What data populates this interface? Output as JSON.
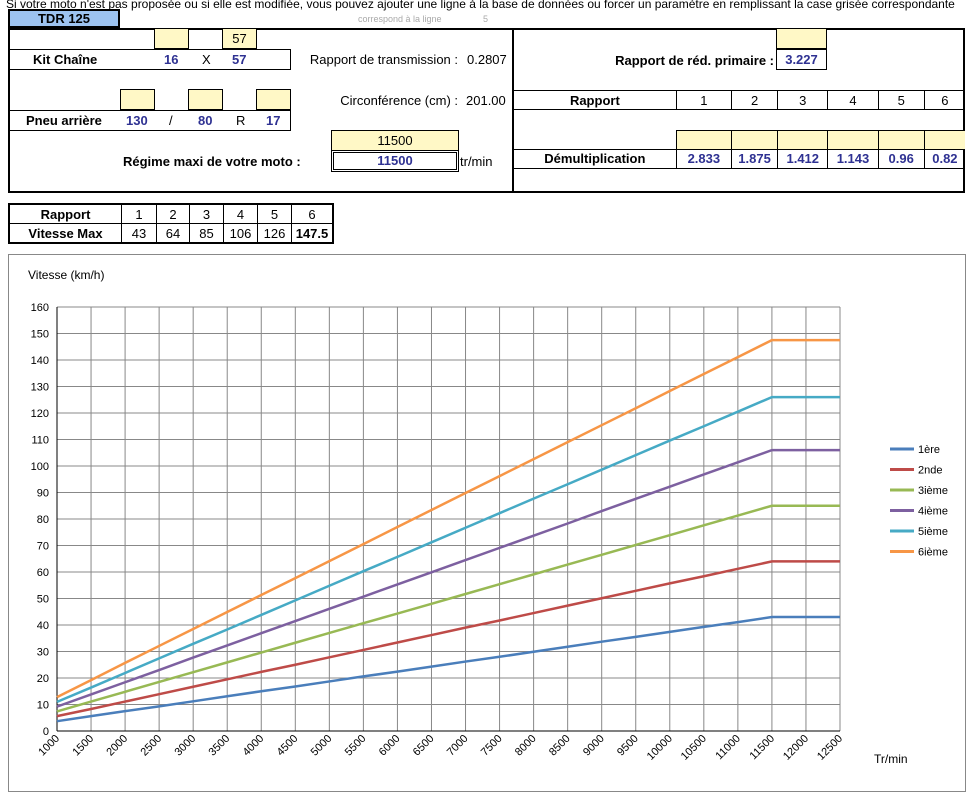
{
  "notice": "Si votre moto n'est pas proposée ou si elle est modifiée, vous pouvez ajouter une ligne à la base de données ou forcer un paramètre en remplissant la case grisée correspondante",
  "model": "TDR 125",
  "line_ref": {
    "label": "correspond à la ligne",
    "value": "5"
  },
  "kit": {
    "label": "Kit Chaîne",
    "override_rear": "57",
    "front": "16",
    "sep": "X",
    "rear": "57"
  },
  "transmission": {
    "label": "Rapport de transmission :",
    "value": "0.2807"
  },
  "tyre": {
    "label": "Pneu arrière",
    "width": "130",
    "sep": "/",
    "ratio": "80",
    "r": "R",
    "rim": "17"
  },
  "circ": {
    "label": "Circonférence (cm) :",
    "value": "201.00"
  },
  "regime": {
    "label": "Régime maxi de votre moto :",
    "override": "11500",
    "value": "11500",
    "unit": "tr/min"
  },
  "primary": {
    "label": "Rapport  de réd. primaire :",
    "value": "3.227"
  },
  "gears": {
    "label": "Rapport",
    "numbers": [
      "1",
      "2",
      "3",
      "4",
      "5",
      "6"
    ],
    "demul_label": "Démultiplication",
    "demul": [
      "2.833",
      "1.875",
      "1.412",
      "1.143",
      "0.96",
      "0.82"
    ]
  },
  "speed_table": {
    "head": "Rapport",
    "row": "Vitesse Max",
    "gears": [
      "1",
      "2",
      "3",
      "4",
      "5",
      "6"
    ],
    "values": [
      "43",
      "64",
      "85",
      "106",
      "126",
      "147.5"
    ]
  },
  "chart_data": {
    "type": "line",
    "ylabel": "Vitesse (km/h)",
    "xlabel": "Tr/min",
    "ylim": [
      0,
      160
    ],
    "yticks": [
      "0",
      "10",
      "20",
      "30",
      "40",
      "50",
      "60",
      "70",
      "80",
      "90",
      "100",
      "110",
      "120",
      "130",
      "140",
      "150",
      "160"
    ],
    "x": [
      "1000",
      "1500",
      "2000",
      "2500",
      "3000",
      "3500",
      "4000",
      "4500",
      "5000",
      "5500",
      "6000",
      "6500",
      "7000",
      "7500",
      "8000",
      "8500",
      "9000",
      "9500",
      "10000",
      "10500",
      "11000",
      "11500",
      "12000",
      "12500"
    ],
    "grid": true,
    "legend": "right",
    "series": [
      {
        "name": "1ère",
        "color": "#4a7ebb",
        "values": [
          3.7,
          5.6,
          7.5,
          9.3,
          11.2,
          13.1,
          15.0,
          16.8,
          18.7,
          20.6,
          22.4,
          24.3,
          26.2,
          28.0,
          29.9,
          31.8,
          33.7,
          35.5,
          37.4,
          39.3,
          41.1,
          43,
          43,
          43
        ]
      },
      {
        "name": "2nde",
        "color": "#be4b48",
        "values": [
          5.6,
          8.3,
          11.1,
          13.9,
          16.7,
          19.5,
          22.3,
          25.0,
          27.8,
          30.6,
          33.4,
          36.2,
          39.0,
          41.7,
          44.5,
          47.3,
          50.1,
          52.9,
          55.7,
          58.4,
          61.2,
          64,
          64,
          64
        ]
      },
      {
        "name": "3ième",
        "color": "#98b954",
        "values": [
          7.4,
          11.1,
          14.8,
          18.5,
          22.2,
          25.9,
          29.6,
          33.3,
          37.0,
          40.7,
          44.3,
          48.0,
          51.7,
          55.4,
          59.1,
          62.8,
          66.5,
          70.2,
          73.9,
          77.6,
          81.3,
          85,
          85,
          85
        ]
      },
      {
        "name": "4ième",
        "color": "#7d60a0",
        "values": [
          9.2,
          13.8,
          18.4,
          23.0,
          27.7,
          32.3,
          36.9,
          41.5,
          46.1,
          50.7,
          55.3,
          59.9,
          64.5,
          69.1,
          73.7,
          78.3,
          83.0,
          87.6,
          92.2,
          96.8,
          101.4,
          106,
          106,
          106
        ]
      },
      {
        "name": "5ième",
        "color": "#46aac5",
        "values": [
          11.0,
          16.4,
          21.9,
          27.4,
          32.9,
          38.3,
          43.8,
          49.3,
          54.8,
          60.3,
          65.7,
          71.2,
          76.7,
          82.2,
          87.7,
          93.1,
          98.6,
          104.1,
          109.6,
          115.0,
          120.5,
          126,
          126,
          126
        ]
      },
      {
        "name": "6ième",
        "color": "#f79646",
        "values": [
          12.8,
          19.2,
          25.7,
          32.1,
          38.5,
          44.9,
          51.3,
          57.7,
          64.1,
          70.5,
          77.0,
          83.4,
          89.8,
          96.2,
          102.6,
          109.0,
          115.4,
          121.8,
          128.3,
          134.7,
          141.1,
          147.5,
          147.5,
          147.5
        ]
      }
    ]
  }
}
